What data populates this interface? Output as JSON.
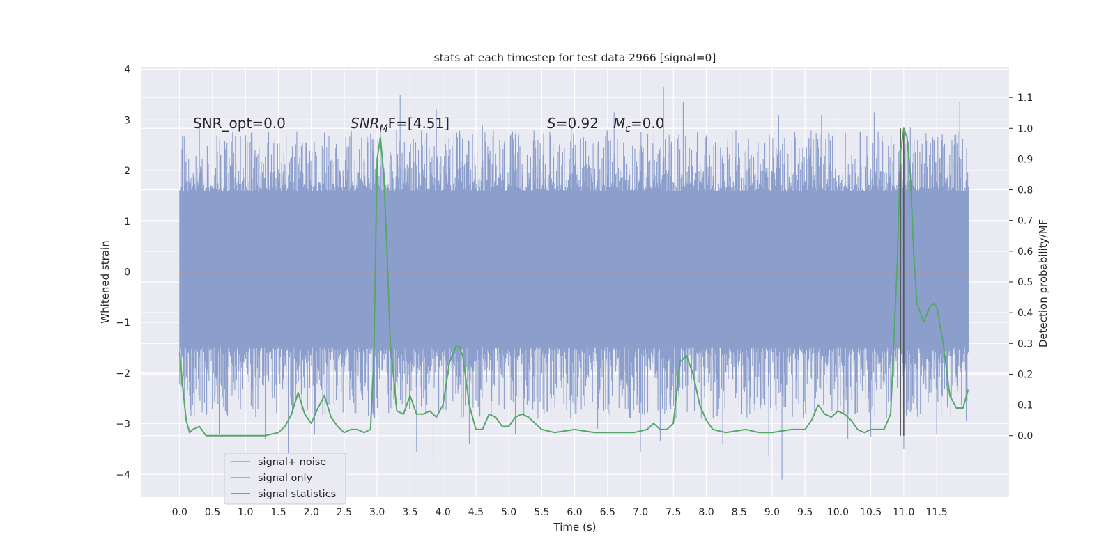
{
  "chart_data": {
    "type": "line",
    "title": "stats at each timestep for test data 2966 [signal=0]",
    "xlabel": "Time (s)",
    "ylabel_left": "Whitened strain",
    "ylabel_right": "Detection probability/MF",
    "xlim": [
      -0.58,
      12.6
    ],
    "ylim_left": [
      -4.45,
      4.05
    ],
    "ylim_right": [
      -0.2,
      1.2
    ],
    "x_ticks": [
      0.0,
      0.5,
      1.0,
      1.5,
      2.0,
      2.5,
      3.0,
      3.5,
      4.0,
      4.5,
      5.0,
      5.5,
      6.0,
      6.5,
      7.0,
      7.5,
      8.0,
      8.5,
      9.0,
      9.5,
      10.0,
      10.5,
      11.0,
      11.5
    ],
    "x_tick_labels": [
      "0.0",
      "0.5",
      "1.0",
      "1.5",
      "2.0",
      "2.5",
      "3.0",
      "3.5",
      "4.0",
      "4.5",
      "5.0",
      "5.5",
      "6.0",
      "6.5",
      "7.0",
      "7.5",
      "8.0",
      "8.5",
      "9.0",
      "9.5",
      "10.0",
      "10.5",
      "11.0",
      "11.5"
    ],
    "y_left_ticks": [
      4,
      3,
      2,
      1,
      0,
      -1,
      -2,
      -3,
      -4
    ],
    "y_left_tick_labels": [
      "4",
      "3",
      "2",
      "1",
      "0",
      "−1",
      "−2",
      "−3",
      "−4"
    ],
    "y_right_ticks": [
      1.1,
      1.0,
      0.9,
      0.8,
      0.7,
      0.6,
      0.5,
      0.4,
      0.3,
      0.2,
      0.1,
      0.0
    ],
    "y_right_tick_labels": [
      "1.1",
      "1.0",
      "0.9",
      "0.8",
      "0.7",
      "0.6",
      "0.5",
      "0.4",
      "0.3",
      "0.2",
      "0.1",
      "0.0"
    ],
    "grid": true,
    "legend_position": "lower-left",
    "annotations": {
      "snr_opt": "SNR_opt=0.0",
      "snr_mf_main": "SNR",
      "snr_mf_sub": "M",
      "snr_mf_rest": "F=[4.51]",
      "s_main": "S",
      "s_rest": "=0.92",
      "mc_main": "M",
      "mc_sub": "c",
      "mc_rest": "=0.0"
    },
    "series": [
      {
        "name": "signal+ noise",
        "axis": "left",
        "color": "#8c9fcc",
        "description_of_form": "dense whitened noise, t 0.0 to 11.98 s",
        "t_range": [
          0.0,
          11.98
        ],
        "core_range": [
          -1.5,
          1.6
        ],
        "peaks_upper": [
          [
            0.05,
            2.55
          ],
          [
            0.3,
            2.85
          ],
          [
            1.1,
            2.75
          ],
          [
            2.2,
            2.75
          ],
          [
            3.05,
            2.9
          ],
          [
            3.35,
            3.5
          ],
          [
            3.9,
            3.2
          ],
          [
            4.6,
            2.9
          ],
          [
            5.15,
            2.7
          ],
          [
            5.95,
            3.0
          ],
          [
            6.6,
            3.15
          ],
          [
            7.35,
            3.65
          ],
          [
            7.65,
            3.35
          ],
          [
            8.45,
            2.8
          ],
          [
            9.1,
            3.1
          ],
          [
            9.75,
            3.1
          ],
          [
            10.55,
            3.15
          ],
          [
            11.1,
            2.85
          ],
          [
            11.85,
            3.35
          ]
        ],
        "peaks_lower": [
          [
            0.15,
            -2.45
          ],
          [
            0.6,
            -3.2
          ],
          [
            1.3,
            -3.3
          ],
          [
            1.65,
            -3.6
          ],
          [
            2.05,
            -3.2
          ],
          [
            3.6,
            -3.55
          ],
          [
            3.85,
            -3.7
          ],
          [
            4.4,
            -3.4
          ],
          [
            5.1,
            -3.2
          ],
          [
            6.35,
            -3.1
          ],
          [
            7.0,
            -3.55
          ],
          [
            7.3,
            -3.35
          ],
          [
            8.25,
            -3.4
          ],
          [
            8.95,
            -3.65
          ],
          [
            9.15,
            -4.1
          ],
          [
            10.15,
            -3.3
          ],
          [
            10.5,
            -3.25
          ],
          [
            11.0,
            -3.5
          ],
          [
            11.5,
            -3.2
          ],
          [
            11.95,
            -2.95
          ]
        ]
      },
      {
        "name": "signal only",
        "axis": "left",
        "color": "#dd8452",
        "x": [
          0.0,
          11.98
        ],
        "y": [
          0.0,
          0.0
        ]
      },
      {
        "name": "signal statistics",
        "axis": "right",
        "color": "#55a868",
        "x": [
          0.0,
          0.05,
          0.1,
          0.15,
          0.2,
          0.3,
          0.4,
          0.5,
          0.7,
          1.0,
          1.3,
          1.5,
          1.6,
          1.7,
          1.8,
          1.9,
          2.0,
          2.1,
          2.2,
          2.3,
          2.4,
          2.5,
          2.6,
          2.7,
          2.8,
          2.9,
          2.95,
          3.0,
          3.05,
          3.1,
          3.15,
          3.2,
          3.3,
          3.4,
          3.5,
          3.6,
          3.7,
          3.8,
          3.9,
          4.0,
          4.1,
          4.2,
          4.25,
          4.3,
          4.4,
          4.5,
          4.6,
          4.7,
          4.8,
          4.9,
          5.0,
          5.1,
          5.2,
          5.3,
          5.4,
          5.5,
          5.7,
          6.0,
          6.3,
          6.6,
          6.9,
          7.1,
          7.2,
          7.3,
          7.4,
          7.5,
          7.6,
          7.7,
          7.8,
          7.9,
          8.0,
          8.1,
          8.3,
          8.6,
          8.8,
          9.0,
          9.3,
          9.5,
          9.6,
          9.7,
          9.8,
          9.9,
          10.0,
          10.1,
          10.2,
          10.3,
          10.4,
          10.5,
          10.6,
          10.7,
          10.8,
          10.9,
          10.95,
          11.0,
          11.05,
          11.1,
          11.15,
          11.2,
          11.3,
          11.4,
          11.45,
          11.5,
          11.6,
          11.7,
          11.8,
          11.9,
          11.98
        ],
        "y": [
          0.27,
          0.15,
          0.05,
          0.01,
          0.02,
          0.03,
          0.0,
          0.0,
          0.0,
          0.0,
          0.0,
          0.01,
          0.03,
          0.07,
          0.14,
          0.07,
          0.04,
          0.09,
          0.13,
          0.06,
          0.03,
          0.01,
          0.02,
          0.02,
          0.01,
          0.02,
          0.25,
          0.9,
          0.97,
          0.85,
          0.6,
          0.3,
          0.08,
          0.07,
          0.13,
          0.07,
          0.07,
          0.08,
          0.06,
          0.1,
          0.24,
          0.29,
          0.29,
          0.26,
          0.1,
          0.02,
          0.02,
          0.07,
          0.06,
          0.03,
          0.03,
          0.06,
          0.07,
          0.06,
          0.04,
          0.02,
          0.01,
          0.02,
          0.01,
          0.01,
          0.01,
          0.02,
          0.04,
          0.02,
          0.02,
          0.04,
          0.24,
          0.26,
          0.2,
          0.1,
          0.05,
          0.02,
          0.01,
          0.02,
          0.01,
          0.01,
          0.02,
          0.02,
          0.05,
          0.1,
          0.07,
          0.06,
          0.08,
          0.07,
          0.05,
          0.02,
          0.01,
          0.02,
          0.02,
          0.02,
          0.07,
          0.55,
          0.92,
          1.0,
          0.97,
          0.85,
          0.6,
          0.43,
          0.37,
          0.42,
          0.43,
          0.42,
          0.3,
          0.13,
          0.09,
          0.09,
          0.15
        ],
        "description_of_form": "smooth detection-probability curve on right axis"
      }
    ],
    "vertical_lines": [
      {
        "x": 10.95,
        "color": "#555555",
        "y_range": [
          0.0,
          1.0
        ]
      },
      {
        "x": 11.0,
        "color": "#555555",
        "y_range": [
          0.0,
          1.0
        ]
      }
    ]
  }
}
